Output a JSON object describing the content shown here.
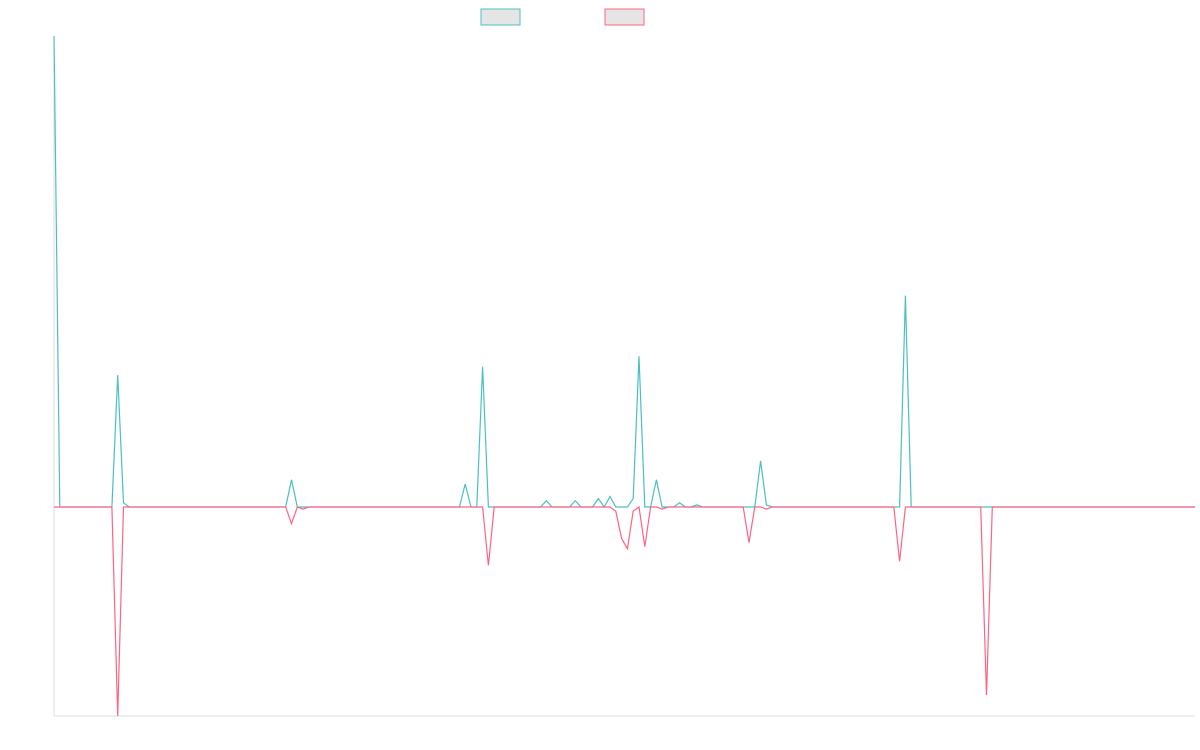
{
  "chart_data": {
    "type": "line",
    "title": "",
    "xlabel": "",
    "ylabel": "",
    "grid": false,
    "legend": {
      "placement": "top-center",
      "entries": [
        {
          "label": "",
          "color": "#4bc0c0"
        },
        {
          "label": "",
          "color": "#ff6384"
        }
      ]
    },
    "x": {
      "min": 0,
      "max": 197
    },
    "ylim": [
      -100,
      225
    ],
    "series": [
      {
        "color": "#4bc0c0",
        "points": [
          [
            0,
            225
          ],
          [
            1,
            0
          ],
          [
            2,
            0
          ],
          [
            3,
            0
          ],
          [
            4,
            0
          ],
          [
            5,
            0
          ],
          [
            6,
            0
          ],
          [
            7,
            0
          ],
          [
            8,
            0
          ],
          [
            9,
            0
          ],
          [
            10,
            0
          ],
          [
            11,
            63
          ],
          [
            12,
            2
          ],
          [
            13,
            0
          ],
          [
            14,
            0
          ],
          [
            40,
            0
          ],
          [
            41,
            13
          ],
          [
            42,
            0
          ],
          [
            43,
            0
          ],
          [
            44,
            0
          ],
          [
            45,
            0
          ],
          [
            70,
            0
          ],
          [
            71,
            11
          ],
          [
            72,
            0
          ],
          [
            73,
            0
          ],
          [
            74,
            67
          ],
          [
            75,
            0
          ],
          [
            76,
            0
          ],
          [
            77,
            0
          ],
          [
            84,
            0
          ],
          [
            85,
            3
          ],
          [
            86,
            0
          ],
          [
            89,
            0
          ],
          [
            90,
            3
          ],
          [
            91,
            0
          ],
          [
            92,
            0
          ],
          [
            93,
            0
          ],
          [
            94,
            4
          ],
          [
            95,
            0
          ],
          [
            96,
            5
          ],
          [
            97,
            0
          ],
          [
            98,
            0
          ],
          [
            99,
            0
          ],
          [
            100,
            4
          ],
          [
            101,
            72
          ],
          [
            102,
            0
          ],
          [
            103,
            0
          ],
          [
            104,
            13
          ],
          [
            105,
            0
          ],
          [
            106,
            0
          ],
          [
            107,
            0
          ],
          [
            108,
            2
          ],
          [
            109,
            0
          ],
          [
            110,
            0
          ],
          [
            111,
            1
          ],
          [
            112,
            0
          ],
          [
            113,
            0
          ],
          [
            114,
            0
          ],
          [
            118,
            0
          ],
          [
            119,
            0
          ],
          [
            120,
            0
          ],
          [
            121,
            0
          ],
          [
            122,
            22
          ],
          [
            123,
            1
          ],
          [
            124,
            0
          ],
          [
            125,
            0
          ],
          [
            126,
            0
          ],
          [
            127,
            0
          ],
          [
            128,
            0
          ],
          [
            129,
            0
          ],
          [
            130,
            0
          ],
          [
            131,
            0
          ],
          [
            132,
            0
          ],
          [
            133,
            0
          ],
          [
            134,
            0
          ],
          [
            135,
            0
          ],
          [
            136,
            0
          ],
          [
            137,
            0
          ],
          [
            138,
            0
          ],
          [
            139,
            0
          ],
          [
            140,
            0
          ],
          [
            141,
            0
          ],
          [
            142,
            0
          ],
          [
            143,
            0
          ],
          [
            144,
            0
          ],
          [
            145,
            0
          ],
          [
            146,
            0
          ],
          [
            147,
            101
          ],
          [
            148,
            0
          ],
          [
            149,
            0
          ],
          [
            150,
            0
          ],
          [
            151,
            0
          ],
          [
            152,
            0
          ],
          [
            153,
            0
          ],
          [
            154,
            0
          ],
          [
            155,
            0
          ],
          [
            156,
            0
          ],
          [
            157,
            0
          ],
          [
            158,
            0
          ],
          [
            159,
            0
          ],
          [
            160,
            0
          ],
          [
            161,
            0
          ],
          [
            162,
            0
          ],
          [
            163,
            0
          ],
          [
            164,
            0
          ],
          [
            165,
            0
          ],
          [
            166,
            0
          ],
          [
            167,
            0
          ],
          [
            168,
            0
          ],
          [
            169,
            0
          ],
          [
            170,
            0
          ],
          [
            171,
            0
          ],
          [
            172,
            0
          ],
          [
            173,
            0
          ],
          [
            174,
            0
          ],
          [
            175,
            0
          ],
          [
            176,
            0
          ],
          [
            177,
            0
          ],
          [
            178,
            0
          ],
          [
            179,
            0
          ],
          [
            180,
            0
          ],
          [
            181,
            0
          ],
          [
            182,
            0
          ],
          [
            183,
            0
          ],
          [
            184,
            0
          ],
          [
            185,
            0
          ],
          [
            186,
            0
          ],
          [
            187,
            0
          ],
          [
            188,
            0
          ],
          [
            189,
            0
          ],
          [
            190,
            0
          ],
          [
            191,
            0
          ],
          [
            192,
            0
          ],
          [
            193,
            0
          ],
          [
            194,
            0
          ],
          [
            195,
            0
          ],
          [
            196,
            0
          ],
          [
            197,
            0
          ]
        ]
      },
      {
        "color": "#ff6384",
        "points": [
          [
            0,
            0
          ],
          [
            1,
            0
          ],
          [
            2,
            0
          ],
          [
            3,
            0
          ],
          [
            4,
            0
          ],
          [
            5,
            0
          ],
          [
            6,
            0
          ],
          [
            7,
            0
          ],
          [
            8,
            0
          ],
          [
            9,
            0
          ],
          [
            10,
            0
          ],
          [
            11,
            -100
          ],
          [
            12,
            0
          ],
          [
            13,
            0
          ],
          [
            40,
            0
          ],
          [
            41,
            -8
          ],
          [
            42,
            0
          ],
          [
            43,
            -1
          ],
          [
            44,
            0
          ],
          [
            74,
            0
          ],
          [
            75,
            -28
          ],
          [
            76,
            0
          ],
          [
            77,
            0
          ],
          [
            96,
            0
          ],
          [
            97,
            -2
          ],
          [
            98,
            -15
          ],
          [
            99,
            -20
          ],
          [
            100,
            -2
          ],
          [
            101,
            0
          ],
          [
            102,
            -19
          ],
          [
            103,
            0
          ],
          [
            104,
            0
          ],
          [
            105,
            -1
          ],
          [
            106,
            0
          ],
          [
            118,
            0
          ],
          [
            119,
            0
          ],
          [
            120,
            -17
          ],
          [
            121,
            0
          ],
          [
            122,
            0
          ],
          [
            123,
            -1
          ],
          [
            124,
            0
          ],
          [
            136,
            0
          ],
          [
            137,
            0
          ],
          [
            138,
            0
          ],
          [
            139,
            0
          ],
          [
            140,
            0
          ],
          [
            141,
            0
          ],
          [
            142,
            0
          ],
          [
            143,
            0
          ],
          [
            144,
            0
          ],
          [
            145,
            0
          ],
          [
            146,
            -26
          ],
          [
            147,
            0
          ],
          [
            148,
            0
          ],
          [
            149,
            0
          ],
          [
            150,
            0
          ],
          [
            151,
            0
          ],
          [
            152,
            0
          ],
          [
            153,
            0
          ],
          [
            154,
            0
          ],
          [
            155,
            0
          ],
          [
            156,
            0
          ],
          [
            157,
            0
          ],
          [
            158,
            0
          ],
          [
            159,
            0
          ],
          [
            160,
            0
          ],
          [
            161,
            -90
          ],
          [
            162,
            0
          ],
          [
            163,
            0
          ],
          [
            164,
            0
          ],
          [
            165,
            0
          ],
          [
            166,
            0
          ],
          [
            167,
            0
          ],
          [
            168,
            0
          ],
          [
            169,
            0
          ],
          [
            170,
            0
          ],
          [
            171,
            0
          ],
          [
            172,
            0
          ],
          [
            173,
            0
          ],
          [
            174,
            0
          ],
          [
            175,
            0
          ],
          [
            176,
            0
          ],
          [
            177,
            0
          ],
          [
            178,
            0
          ],
          [
            179,
            0
          ],
          [
            180,
            0
          ],
          [
            181,
            0
          ],
          [
            182,
            0
          ],
          [
            183,
            0
          ],
          [
            184,
            0
          ],
          [
            185,
            0
          ],
          [
            186,
            0
          ],
          [
            187,
            0
          ],
          [
            188,
            0
          ],
          [
            189,
            0
          ],
          [
            190,
            0
          ],
          [
            191,
            0
          ],
          [
            192,
            0
          ],
          [
            193,
            0
          ],
          [
            194,
            0
          ],
          [
            195,
            0
          ],
          [
            196,
            0
          ],
          [
            197,
            0
          ]
        ]
      }
    ]
  }
}
